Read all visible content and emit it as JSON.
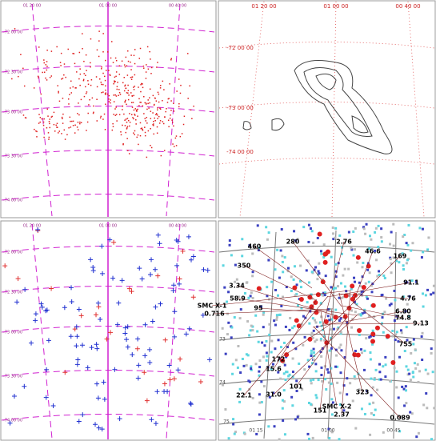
{
  "panels": [
    {
      "labels": [
        "01 20 00",
        "01 00 00",
        "00 40 00",
        "-72 00 00",
        "-72 30 00",
        "-73 00 00",
        "-73 30 00",
        "-74 00 00"
      ]
    },
    {
      "labels": [
        "01 20 00",
        "01 00 00",
        "00 40 00",
        "-72 00 00",
        "-73 00 00",
        "-74 00 00"
      ]
    },
    {
      "labels": [
        "01 20 00",
        "01 00 00",
        "00 40 00",
        "-72 00 00",
        "-72 30 00",
        "-73 00 00",
        "-73 30 00",
        "-74 00 00"
      ]
    },
    {
      "labels": [
        "460",
        "280",
        "2.76",
        "46.6",
        "169",
        "350",
        "3.34",
        "91.1",
        "58.9",
        "4.76",
        "95",
        "SMC X-1",
        "0.716",
        "6.80",
        "74.8",
        "9.13",
        "755",
        "172",
        "15.6",
        "101",
        "22.1",
        "31.0",
        "323",
        "SMC X-2",
        "2.37",
        "151",
        "0.089",
        "01 15",
        "01 00",
        "00 45",
        "73",
        "74",
        "75"
      ]
    }
  ]
}
